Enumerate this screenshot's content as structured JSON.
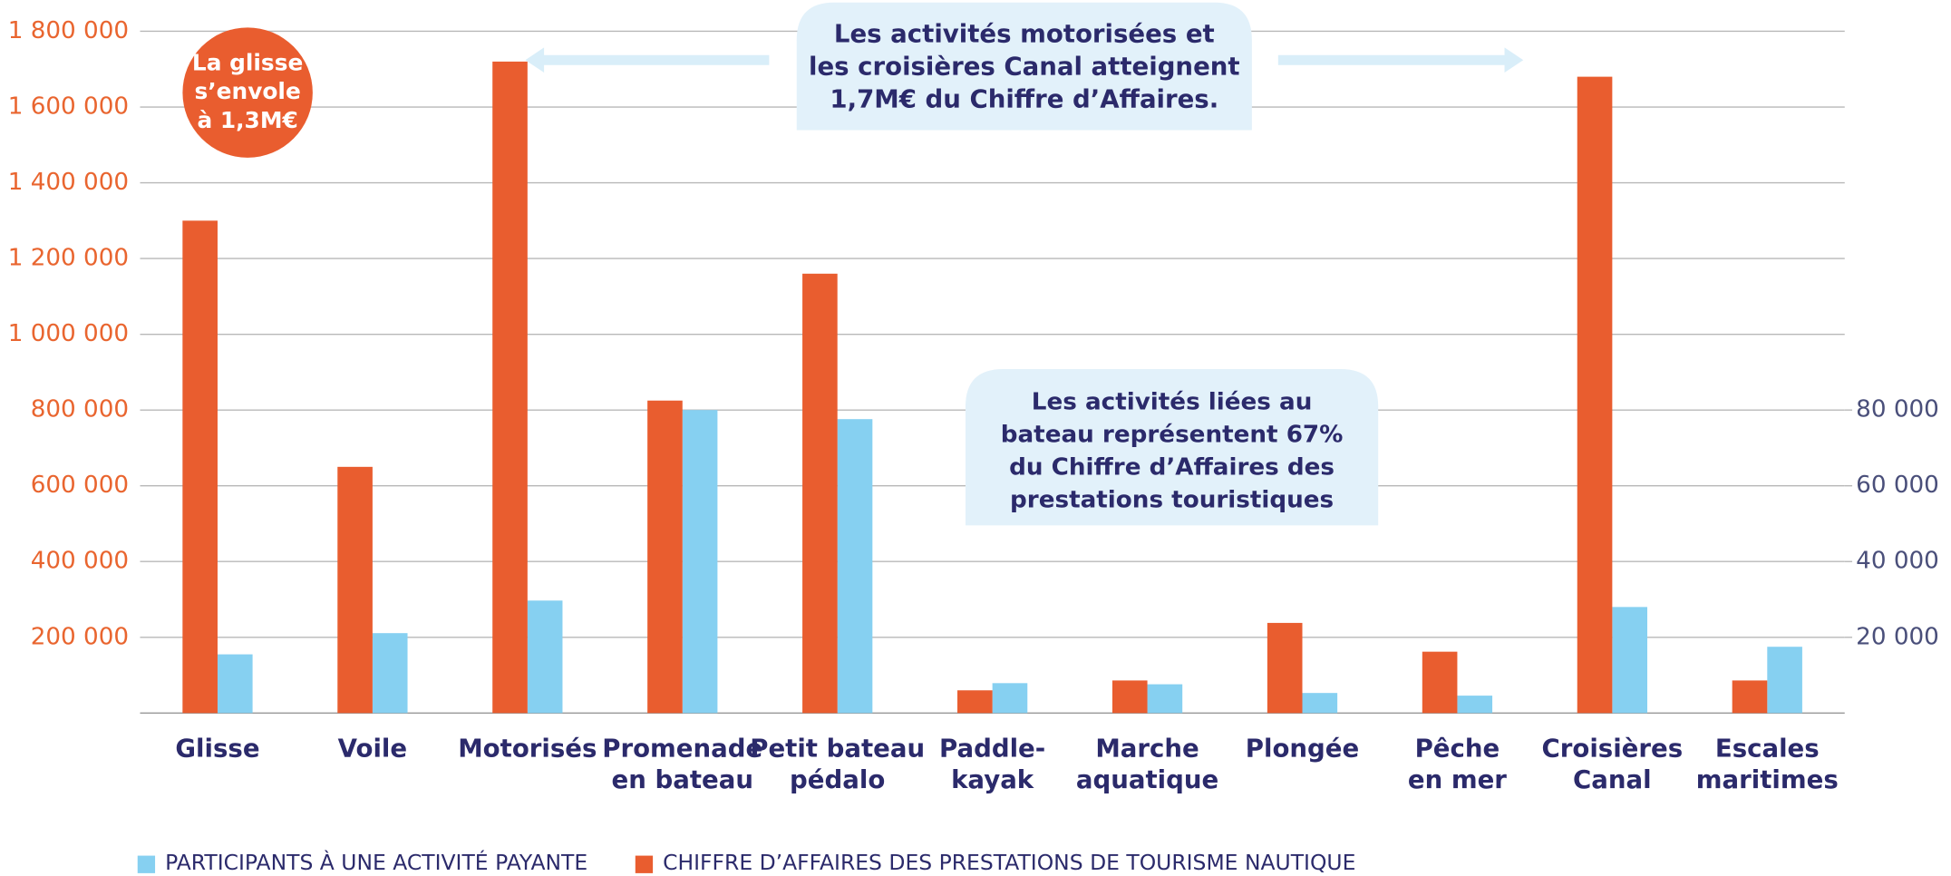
{
  "chart_data": {
    "type": "bar",
    "categories": [
      "Glisse",
      "Voile",
      "Motorisés",
      "Promenade\nen bateau",
      "Petit bateau\npédalo",
      "Paddle-\nkayak",
      "Marche\naquatique",
      "Plongée",
      "Pêche\nen mer",
      "Croisières\nCanal",
      "Escales\nmaritimes"
    ],
    "series": [
      {
        "name": "PARTICIPANTS À UNE ACTIVITÉ PAYANTE",
        "color": "#86d0f1",
        "axis": "y2",
        "values": [
          15500,
          21100,
          29700,
          80000,
          77600,
          7900,
          7600,
          5300,
          4600,
          28000,
          17500
        ]
      },
      {
        "name": "CHIFFRE D’AFFAIRES DES PRESTATIONS DE TOURISME NAUTIQUE",
        "color": "#e95d2f",
        "values": [
          1300000,
          650000,
          1720000,
          825000,
          1160000,
          60000,
          86000,
          238000,
          162000,
          1680000,
          86000
        ]
      }
    ],
    "ylim": [
      0,
      1800000
    ],
    "yticks": [
      {
        "value": 200000,
        "label": "200 000"
      },
      {
        "value": 400000,
        "label": "400 000"
      },
      {
        "value": 600000,
        "label": "600 000"
      },
      {
        "value": 800000,
        "label": "800 000"
      },
      {
        "value": 1000000,
        "label": "1 000 000"
      },
      {
        "value": 1200000,
        "label": "1 200 000"
      },
      {
        "value": 1400000,
        "label": "1 400 000"
      },
      {
        "value": 1600000,
        "label": "1 600 000"
      },
      {
        "value": 1800000,
        "label": "1 800 000"
      }
    ],
    "y2lim": [
      0,
      180000
    ],
    "y2ticks": [
      {
        "value": 20000,
        "label": "20 000"
      },
      {
        "value": 40000,
        "label": "40 000"
      },
      {
        "value": 60000,
        "label": "60 000"
      },
      {
        "value": 80000,
        "label": "80 000"
      }
    ],
    "grid": true,
    "legend": "bottom",
    "annotations": [
      {
        "lines": [
          "Les activités motorisées et",
          "les croisières Canal atteignent",
          "1,7M€ du Chiffre d’Affaires."
        ]
      },
      {
        "lines": [
          "Les activités liées au",
          "bateau représentent 67%",
          "du Chiffre d’Affaires des",
          "prestations touristiques"
        ]
      },
      {
        "lines": [
          "La glisse",
          "s’envole",
          "à 1,3M€"
        ]
      }
    ]
  }
}
